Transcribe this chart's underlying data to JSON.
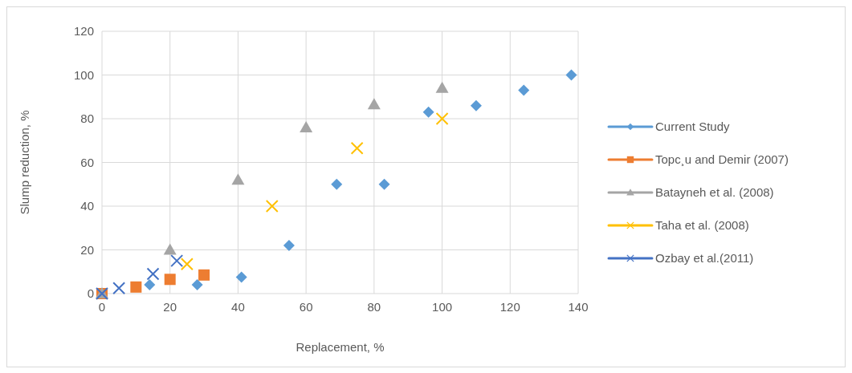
{
  "chart_data": {
    "type": "scatter",
    "xlabel": "Replacement,  %",
    "ylabel": "Slump reduction, %",
    "xlim": [
      0,
      140
    ],
    "xticks": [
      0,
      20,
      40,
      60,
      80,
      100,
      120,
      140
    ],
    "ylim": [
      0,
      120
    ],
    "yticks": [
      0,
      20,
      40,
      60,
      80,
      100,
      120
    ],
    "grid": true,
    "legend": "right",
    "series": [
      {
        "name": "Current Study",
        "color": "#5b9bd5",
        "marker": "diamond",
        "x": [
          14,
          28,
          41,
          55,
          69,
          83,
          96,
          110,
          124,
          138
        ],
        "values": [
          4,
          4,
          7.5,
          22,
          50,
          50,
          83,
          86,
          93,
          100
        ]
      },
      {
        "name": "Topc¸u and Demir (2007)",
        "color": "#ed7d31",
        "marker": "square",
        "x": [
          0,
          10,
          20,
          30
        ],
        "values": [
          0,
          3,
          6.5,
          8.5
        ]
      },
      {
        "name": "Batayneh et al. (2008)",
        "color": "#a5a5a5",
        "marker": "triangle",
        "x": [
          0,
          20,
          40,
          60,
          80,
          100
        ],
        "values": [
          0,
          20,
          52,
          76,
          86.5,
          94
        ]
      },
      {
        "name": "Taha et al. (2008)",
        "color": "#ffc000",
        "marker": "cross",
        "x": [
          25,
          50,
          75,
          100
        ],
        "values": [
          13.5,
          40,
          66.5,
          80
        ]
      },
      {
        "name": "Ozbay et al.(2011)",
        "color": "#4472c4",
        "marker": "cross",
        "x": [
          0,
          5,
          15,
          22
        ],
        "values": [
          0,
          2.5,
          9,
          15
        ]
      }
    ]
  }
}
